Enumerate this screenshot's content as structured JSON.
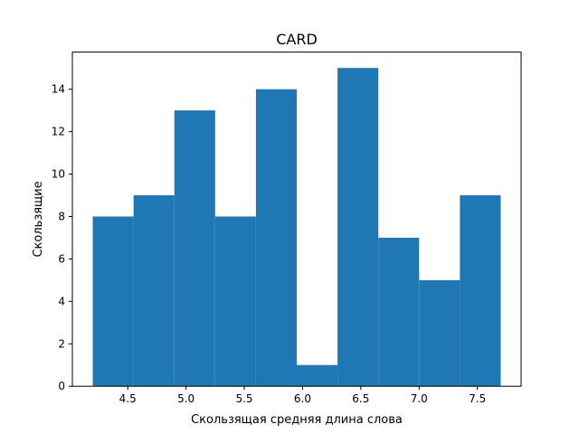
{
  "chart_data": {
    "type": "bar",
    "title": "CARD",
    "xlabel": "Скользящая средняя длина слова",
    "ylabel": "Скользящие",
    "xlim": [
      4.025,
      7.875
    ],
    "ylim": [
      0,
      15.75
    ],
    "bin_edges": [
      4.2,
      4.55,
      4.9,
      5.25,
      5.6,
      5.95,
      6.3,
      6.65,
      7.0,
      7.35,
      7.7
    ],
    "values": [
      8,
      9,
      13,
      8,
      14,
      1,
      15,
      7,
      5,
      9
    ],
    "x_ticks": [
      4.5,
      5.0,
      5.5,
      6.0,
      6.5,
      7.0,
      7.5
    ],
    "x_tick_labels": [
      "4.5",
      "5.0",
      "5.5",
      "6.0",
      "6.5",
      "7.0",
      "7.5"
    ],
    "y_ticks": [
      0,
      2,
      4,
      6,
      8,
      10,
      12,
      14
    ],
    "y_tick_labels": [
      "0",
      "2",
      "4",
      "6",
      "8",
      "10",
      "12",
      "14"
    ],
    "grid": false,
    "bar_color": "#1f77b4"
  }
}
